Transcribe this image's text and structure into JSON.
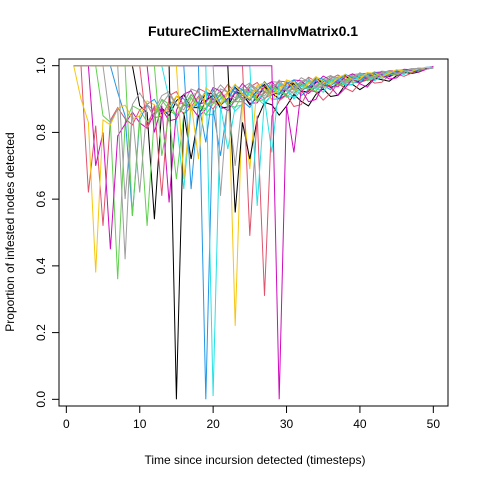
{
  "chart_data": {
    "type": "line",
    "title": "FutureClimExternalInvMatrix0.1",
    "xlabel": "Time since incursion detected (timesteps)",
    "ylabel": "Proportion of infested nodes detected",
    "xlim": [
      -1,
      52
    ],
    "ylim": [
      -0.02,
      1.02
    ],
    "x_ticks": [
      0,
      10,
      20,
      30,
      40,
      50
    ],
    "y_ticks": [
      0.0,
      0.2,
      0.4,
      0.6,
      0.8,
      1.0
    ],
    "x_tick_labels": [
      "0",
      "10",
      "20",
      "30",
      "40",
      "50"
    ],
    "y_tick_labels": [
      "0.0",
      "0.2",
      "0.4",
      "0.6",
      "0.8",
      "1.0"
    ],
    "grid": false,
    "legend": "none",
    "series": [
      {
        "color": "#000000",
        "start": 9,
        "drop": 0.88,
        "dip_at": 10,
        "dip": 0.54,
        "plateau": 0.86
      },
      {
        "color": "#DF536B",
        "start": 2,
        "drop": 0.62,
        "dip_at": 3,
        "dip": 0.52,
        "plateau": 0.82
      },
      {
        "color": "#61D04F",
        "start": 4,
        "drop": 0.85,
        "dip_at": 5,
        "dip": 0.36,
        "plateau": 0.83
      },
      {
        "color": "#2297E6",
        "start": 6,
        "drop": 0.92,
        "dip_at": 7,
        "dip": 0.55,
        "plateau": 0.85
      },
      {
        "color": "#28E2E5",
        "start": 13,
        "drop": 0.9,
        "dip_at": 14,
        "dip": 0.63,
        "plateau": 0.84
      },
      {
        "color": "#CD0BBC",
        "start": 3,
        "drop": 0.7,
        "dip_at": 4,
        "dip": 0.45,
        "plateau": 0.8
      },
      {
        "color": "#F5C710",
        "start": 1,
        "drop": 0.9,
        "dip_at": 2,
        "dip": 0.38,
        "plateau": 0.83
      },
      {
        "color": "#9E9E9E",
        "start": 5,
        "drop": 0.83,
        "dip_at": 6,
        "dip": 0.42,
        "plateau": 0.87
      },
      {
        "color": "#000000",
        "start": 14,
        "drop": 0.0,
        "dip_at": 15,
        "dip": 0.72,
        "plateau": 0.86
      },
      {
        "color": "#DF536B",
        "start": 10,
        "drop": 0.81,
        "dip_at": 11,
        "dip": 0.61,
        "plateau": 0.88
      },
      {
        "color": "#61D04F",
        "start": 8,
        "drop": 0.55,
        "dip_at": 9,
        "dip": 0.52,
        "plateau": 0.85
      },
      {
        "color": "#2297E6",
        "start": 18,
        "drop": 0.0,
        "dip_at": 19,
        "dip": 0.73,
        "plateau": 0.87
      },
      {
        "color": "#28E2E5",
        "start": 19,
        "drop": 0.01,
        "dip_at": 20,
        "dip": 0.75,
        "plateau": 0.88
      },
      {
        "color": "#CD0BBC",
        "start": 11,
        "drop": 0.8,
        "dip_at": 12,
        "dip": 0.59,
        "plateau": 0.88
      },
      {
        "color": "#F5C710",
        "start": 22,
        "drop": 0.22,
        "dip_at": 23,
        "dip": 0.69,
        "plateau": 0.9
      },
      {
        "color": "#9E9E9E",
        "start": 7,
        "drop": 0.6,
        "dip_at": 8,
        "dip": 0.62,
        "plateau": 0.86
      },
      {
        "color": "#000000",
        "start": 22,
        "drop": 0.56,
        "dip_at": 23,
        "dip": 0.72,
        "plateau": 0.83
      },
      {
        "color": "#DF536B",
        "start": 24,
        "drop": 0.49,
        "dip_at": 25,
        "dip": 0.31,
        "plateau": 0.85
      },
      {
        "color": "#61D04F",
        "start": 12,
        "drop": 0.73,
        "dip_at": 13,
        "dip": 0.66,
        "plateau": 0.85
      },
      {
        "color": "#2297E6",
        "start": 16,
        "drop": 0.63,
        "dip_at": 17,
        "dip": 0.77,
        "plateau": 0.89
      },
      {
        "color": "#28E2E5",
        "start": 25,
        "drop": 0.58,
        "dip_at": 26,
        "dip": 0.74,
        "plateau": 0.9
      },
      {
        "color": "#CD0BBC",
        "start": 28,
        "drop": 0.0,
        "dip_at": 29,
        "dip": 0.74,
        "plateau": 0.88
      },
      {
        "color": "#F5C710",
        "start": 15,
        "drop": 0.66,
        "dip_at": 16,
        "dip": 0.72,
        "plateau": 0.89
      },
      {
        "color": "#9E9E9E",
        "start": 20,
        "drop": 0.61,
        "dip_at": 21,
        "dip": 0.7,
        "plateau": 0.9
      }
    ]
  }
}
